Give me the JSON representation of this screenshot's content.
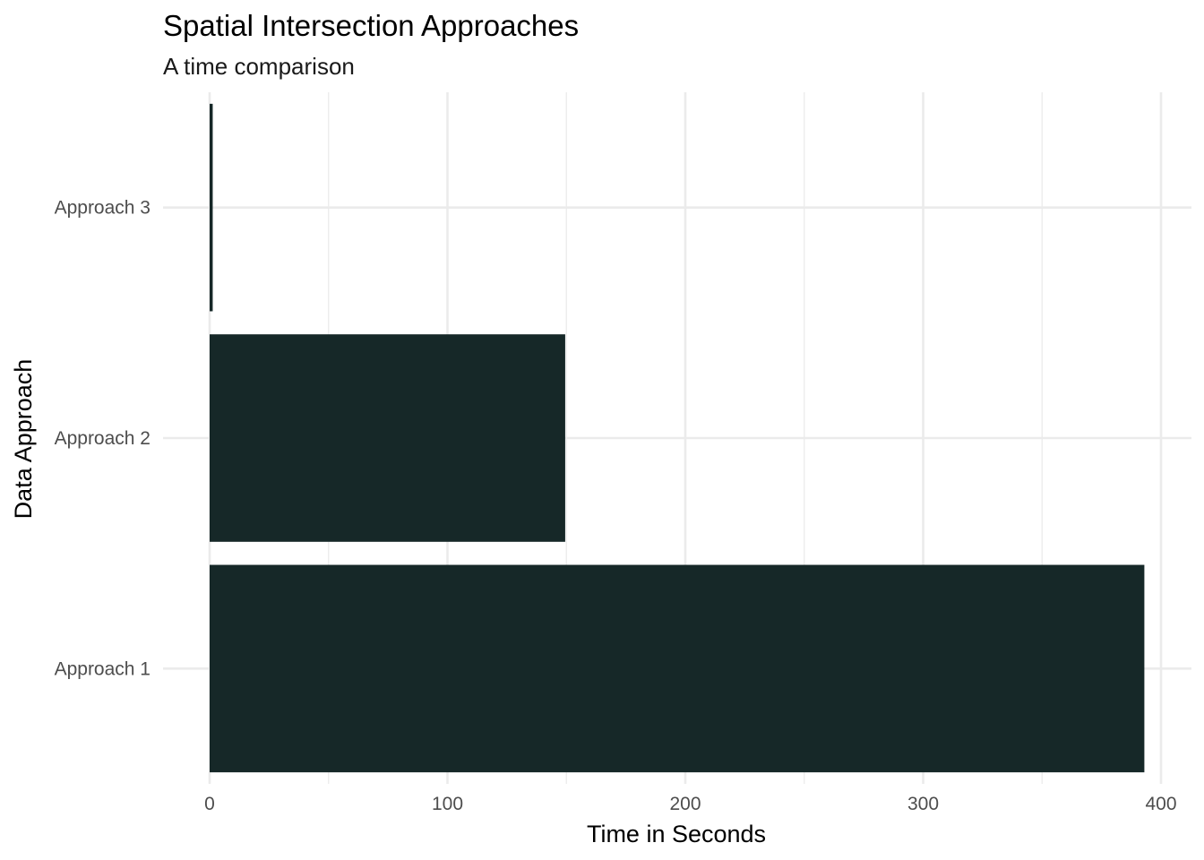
{
  "chart_data": {
    "type": "bar",
    "orientation": "horizontal",
    "title": "Spatial Intersection Approaches",
    "subtitle": "A time comparison",
    "xlabel": "Time in Seconds",
    "ylabel": "Data Approach",
    "categories": [
      "Approach 1",
      "Approach 2",
      "Approach 3"
    ],
    "values": [
      393,
      149.5,
      1.3
    ],
    "xlim": [
      0,
      412
    ],
    "x_ticks": [
      0,
      100,
      200,
      300,
      400
    ],
    "x_tick_labels": [
      "0",
      "100",
      "200",
      "300",
      "400"
    ],
    "bar_color": "#162828",
    "grid": true,
    "legend": "none"
  }
}
